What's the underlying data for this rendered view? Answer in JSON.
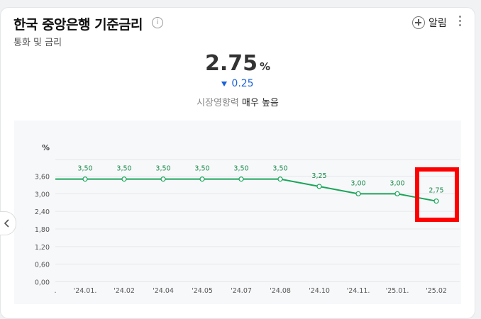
{
  "header": {
    "title": "한국 중앙은행 기준금리",
    "subtitle": "통화 및 금리",
    "info_glyph": "i",
    "alarm_label": "알림"
  },
  "rate": {
    "value": "2.75",
    "unit": "%",
    "change": "0.25",
    "change_direction": "down",
    "market_impact_label": "시장영향력",
    "market_impact_value": "매우 높음"
  },
  "colors": {
    "line": "#1aa55a",
    "change": "#1a62d8",
    "highlight": "#ff0000"
  },
  "chart_data": {
    "type": "line",
    "ylabel": "%",
    "ylim": [
      0,
      3.6
    ],
    "yticks": [
      "0,00",
      "0,60",
      "1,20",
      "1,80",
      "2,40",
      "3,00",
      "3,60"
    ],
    "ytick_values": [
      0,
      0.6,
      1.2,
      1.8,
      2.4,
      3.0,
      3.6
    ],
    "categories": [
      "'24.01",
      "'24.02",
      "'24.04",
      "'24.05",
      "'24.07",
      "'24.08",
      "'24.10",
      "'24.11",
      "'25.01",
      "'25.02"
    ],
    "xtick_labels": [
      "'24.01.",
      "'24.02",
      "'24.04",
      "'24.05",
      "'24.07",
      "'24.08",
      "'24.10",
      "'24.11.",
      "'25.01.",
      "'25.02"
    ],
    "values": [
      3.5,
      3.5,
      3.5,
      3.5,
      3.5,
      3.5,
      3.25,
      3.0,
      3.0,
      2.75
    ],
    "data_labels": [
      "3,50",
      "3,50",
      "3,50",
      "3,50",
      "3,50",
      "3,50",
      "3,25",
      "3,00",
      "3,00",
      "2,75"
    ]
  }
}
